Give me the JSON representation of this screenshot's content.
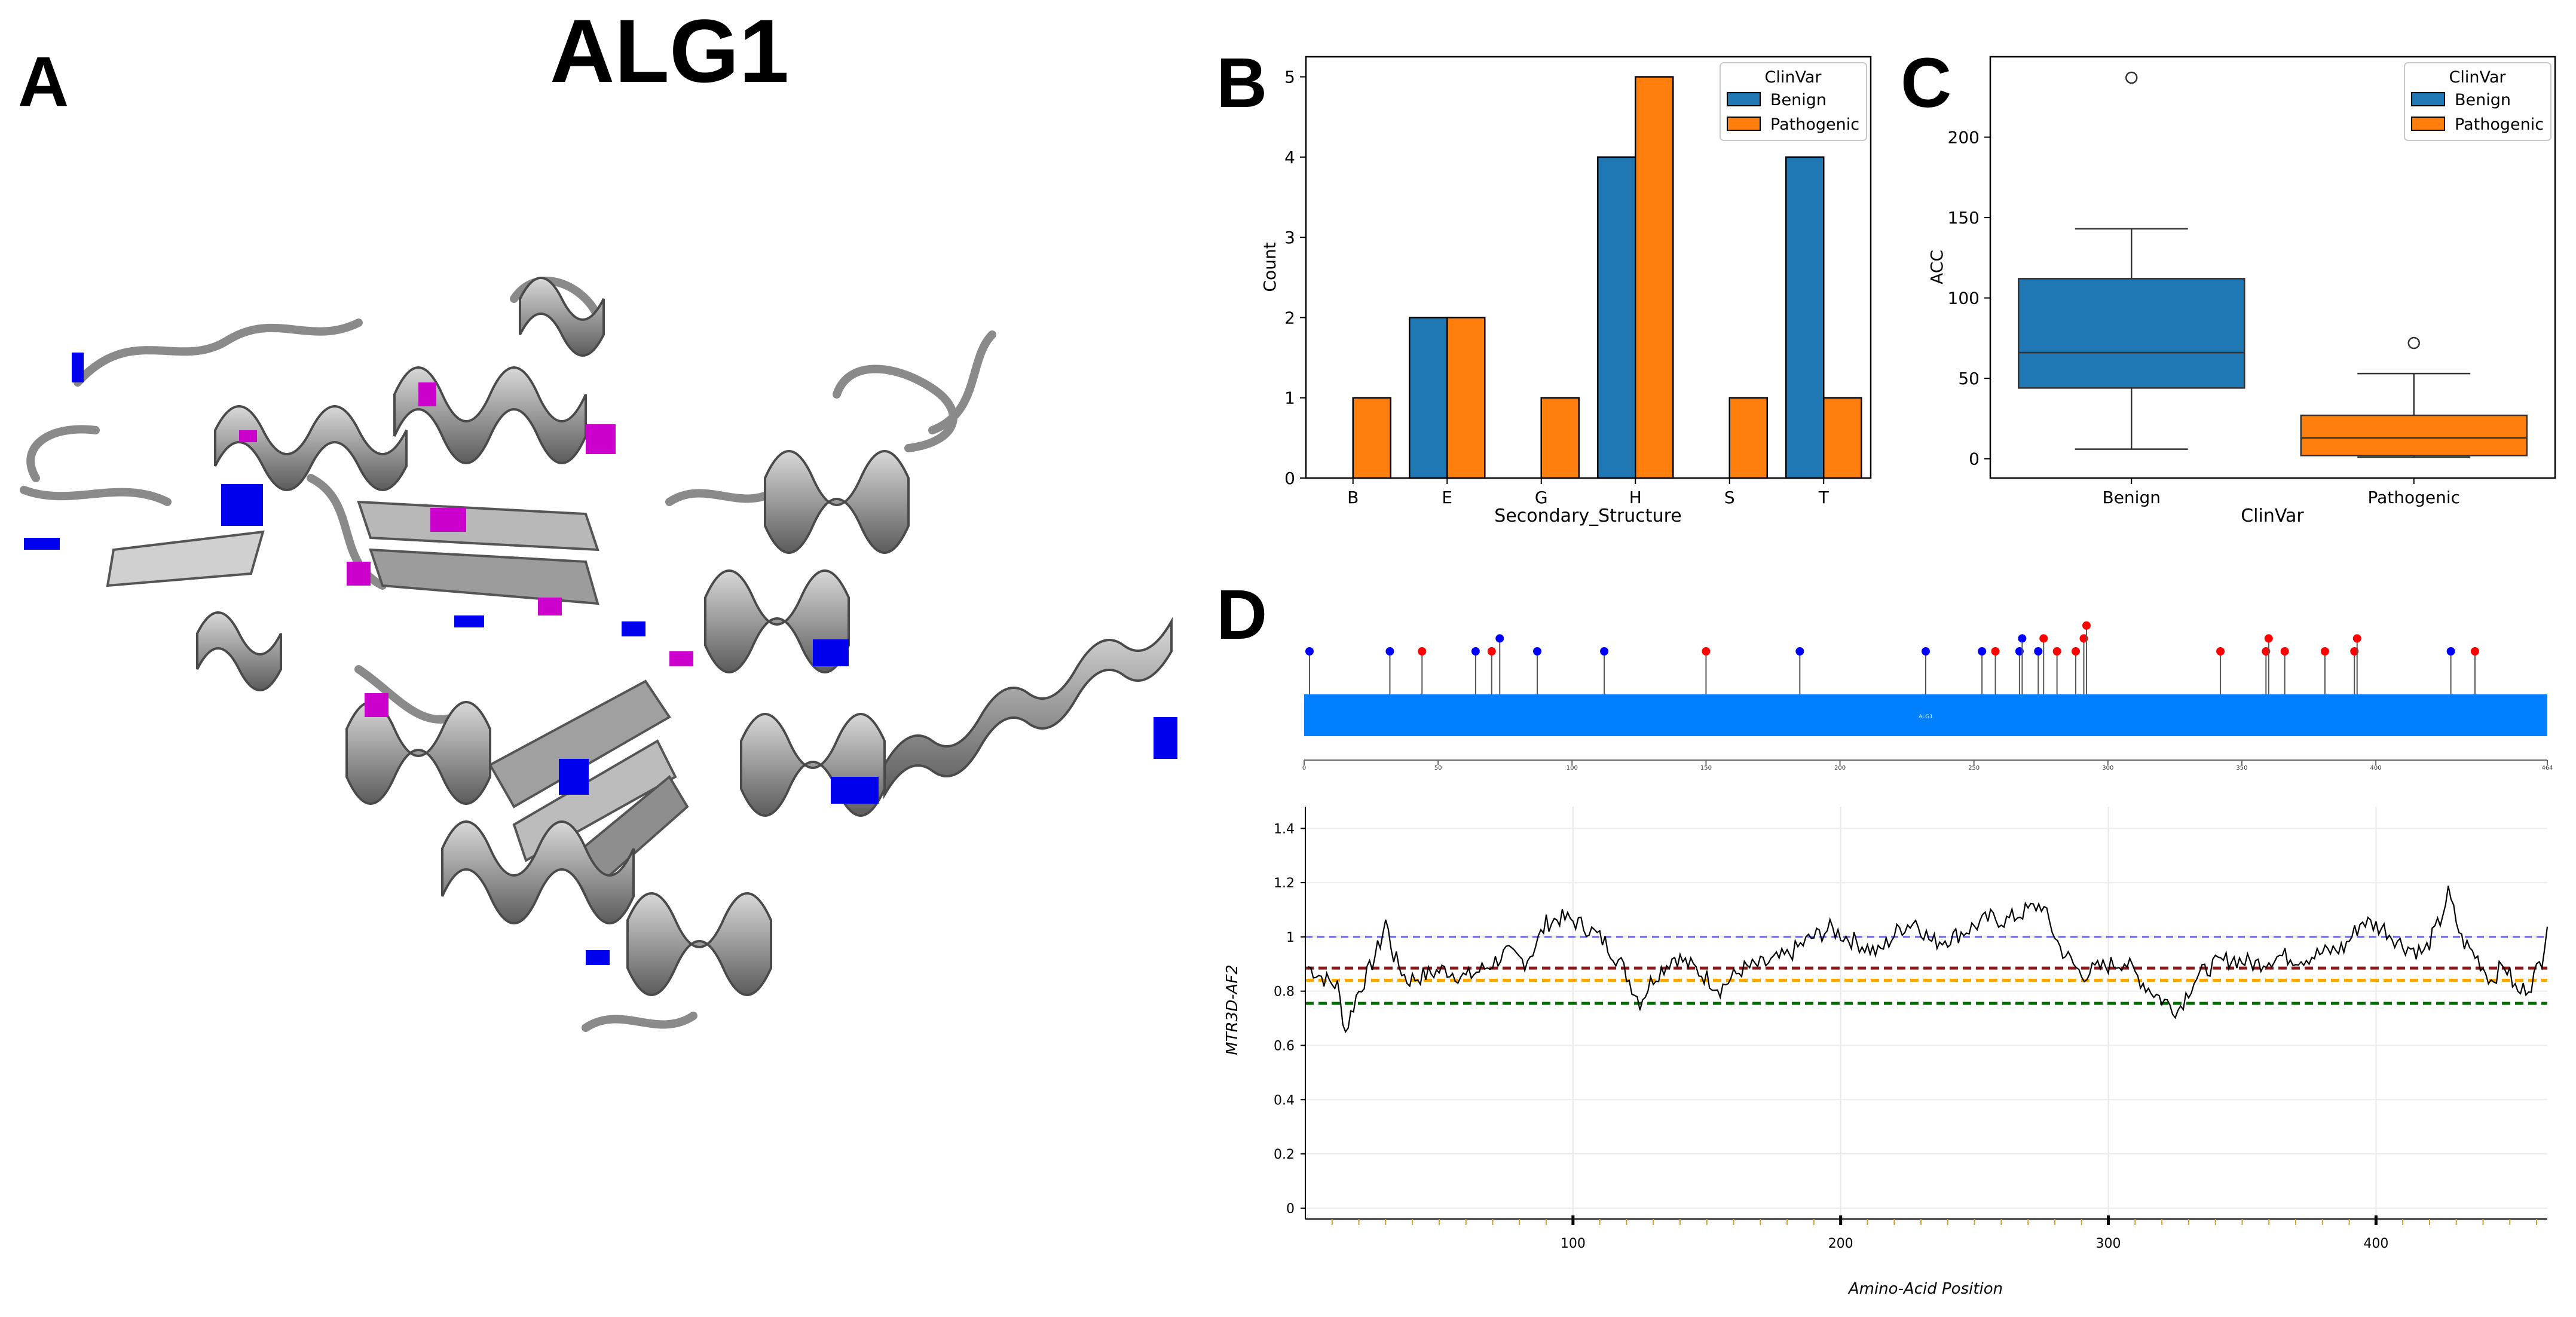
{
  "figure": {
    "title": "ALG1",
    "panel_labels": [
      "A",
      "B",
      "C",
      "D"
    ]
  },
  "colors": {
    "benign": "#1f77b4",
    "pathogenic": "#ff7f0e",
    "helix_gray": "#a9a9a9",
    "highlight_blue": "#0000ee",
    "highlight_magenta": "#cc00cc",
    "lollipop_blue": "#0000ff",
    "lollipop_red": "#ff0000",
    "protein_bar": "#0080ff",
    "line_purple": "#6666ee",
    "line_darkred": "#8b1a1a",
    "line_orange": "#ffa500",
    "line_green": "#007000"
  },
  "chart_data": [
    {
      "panel": "B",
      "type": "bar",
      "categories": [
        "B",
        "E",
        "G",
        "H",
        "S",
        "T"
      ],
      "series": [
        {
          "name": "Benign",
          "values": [
            0,
            2,
            0,
            4,
            0,
            4
          ]
        },
        {
          "name": "Pathogenic",
          "values": [
            1,
            2,
            1,
            5,
            1,
            1
          ]
        }
      ],
      "xlabel": "Secondary_Structure",
      "ylabel": "Count",
      "ylim": [
        0,
        5.25
      ],
      "yticks": [
        0,
        1,
        2,
        3,
        4,
        5
      ],
      "legend": {
        "title": "ClinVar",
        "position": "top-right",
        "entries": [
          "Benign",
          "Pathogenic"
        ]
      }
    },
    {
      "panel": "C",
      "type": "box",
      "categories": [
        "Benign",
        "Pathogenic"
      ],
      "boxes": [
        {
          "name": "Benign",
          "whisker_low": 6,
          "q1": 44,
          "median": 66,
          "q3": 112,
          "whisker_high": 143,
          "outliers": [
            237
          ]
        },
        {
          "name": "Pathogenic",
          "whisker_low": 1,
          "q1": 2,
          "median": 13,
          "q3": 27,
          "whisker_high": 53,
          "outliers": [
            72
          ]
        }
      ],
      "xlabel": "ClinVar",
      "ylabel": "ACC",
      "ylim": [
        -12,
        250
      ],
      "yticks": [
        0,
        50,
        100,
        150,
        200
      ],
      "legend": {
        "title": "ClinVar",
        "position": "top-right",
        "entries": [
          "Benign",
          "Pathogenic"
        ]
      }
    },
    {
      "panel": "D-top",
      "type": "lollipop",
      "protein_label": "ALG1",
      "xlim": [
        0,
        464
      ],
      "xticks": [
        0,
        50,
        100,
        150,
        200,
        250,
        300,
        350,
        400,
        464
      ],
      "variants": [
        {
          "pos": 2,
          "class": "benign",
          "h": 1
        },
        {
          "pos": 32,
          "class": "benign",
          "h": 1
        },
        {
          "pos": 44,
          "class": "pathogenic",
          "h": 1
        },
        {
          "pos": 64,
          "class": "benign",
          "h": 1
        },
        {
          "pos": 70,
          "class": "pathogenic",
          "h": 1
        },
        {
          "pos": 73,
          "class": "benign",
          "h": 1.3
        },
        {
          "pos": 87,
          "class": "benign",
          "h": 1
        },
        {
          "pos": 112,
          "class": "benign",
          "h": 1
        },
        {
          "pos": 150,
          "class": "pathogenic",
          "h": 1
        },
        {
          "pos": 185,
          "class": "benign",
          "h": 1
        },
        {
          "pos": 232,
          "class": "benign",
          "h": 1
        },
        {
          "pos": 253,
          "class": "benign",
          "h": 1
        },
        {
          "pos": 258,
          "class": "pathogenic",
          "h": 1
        },
        {
          "pos": 267,
          "class": "benign",
          "h": 1
        },
        {
          "pos": 268,
          "class": "benign",
          "h": 1.3
        },
        {
          "pos": 274,
          "class": "benign",
          "h": 1
        },
        {
          "pos": 276,
          "class": "pathogenic",
          "h": 1.3
        },
        {
          "pos": 281,
          "class": "pathogenic",
          "h": 1
        },
        {
          "pos": 288,
          "class": "pathogenic",
          "h": 1
        },
        {
          "pos": 291,
          "class": "pathogenic",
          "h": 1.3
        },
        {
          "pos": 292,
          "class": "pathogenic",
          "h": 1.6
        },
        {
          "pos": 342,
          "class": "pathogenic",
          "h": 1
        },
        {
          "pos": 359,
          "class": "pathogenic",
          "h": 1
        },
        {
          "pos": 360,
          "class": "pathogenic",
          "h": 1.3
        },
        {
          "pos": 366,
          "class": "pathogenic",
          "h": 1
        },
        {
          "pos": 381,
          "class": "pathogenic",
          "h": 1
        },
        {
          "pos": 392,
          "class": "pathogenic",
          "h": 1
        },
        {
          "pos": 393,
          "class": "pathogenic",
          "h": 1.3
        },
        {
          "pos": 428,
          "class": "benign",
          "h": 1
        },
        {
          "pos": 437,
          "class": "pathogenic",
          "h": 1
        }
      ]
    },
    {
      "panel": "D-bottom",
      "type": "line",
      "xlabel": "Amino-Acid Position",
      "ylabel": "MTR3D-AF2",
      "xlim": [
        0,
        464
      ],
      "ylim": [
        -0.04,
        1.48
      ],
      "xticks": [
        100,
        200,
        300,
        400
      ],
      "yticks": [
        0,
        0.2,
        0.4,
        0.6,
        0.8,
        1,
        1.2,
        1.4
      ],
      "ytick_labels": [
        "0",
        "0.2",
        "0.4",
        "0.6",
        "0.8",
        "1",
        "1.2",
        "1.4"
      ],
      "reference_lines": [
        {
          "y": 1.0,
          "color": "purple"
        },
        {
          "y": 0.885,
          "color": "darkred"
        },
        {
          "y": 0.84,
          "color": "orange"
        },
        {
          "y": 0.755,
          "color": "green"
        }
      ],
      "series_knots": [
        [
          1,
          0.89
        ],
        [
          8,
          0.84
        ],
        [
          12,
          0.82
        ],
        [
          15,
          0.65
        ],
        [
          19,
          0.78
        ],
        [
          24,
          0.88
        ],
        [
          28,
          0.98
        ],
        [
          30,
          1.06
        ],
        [
          33,
          0.93
        ],
        [
          38,
          0.84
        ],
        [
          45,
          0.86
        ],
        [
          52,
          0.88
        ],
        [
          60,
          0.85
        ],
        [
          68,
          0.89
        ],
        [
          75,
          0.94
        ],
        [
          82,
          0.91
        ],
        [
          85,
          0.95
        ],
        [
          90,
          1.05
        ],
        [
          95,
          1.07
        ],
        [
          100,
          1.06
        ],
        [
          106,
          1.03
        ],
        [
          112,
          0.98
        ],
        [
          118,
          0.9
        ],
        [
          125,
          0.76
        ],
        [
          130,
          0.85
        ],
        [
          138,
          0.93
        ],
        [
          146,
          0.88
        ],
        [
          155,
          0.81
        ],
        [
          163,
          0.88
        ],
        [
          172,
          0.9
        ],
        [
          180,
          0.93
        ],
        [
          188,
          0.99
        ],
        [
          196,
          1.03
        ],
        [
          206,
          0.98
        ],
        [
          214,
          0.94
        ],
        [
          222,
          1.03
        ],
        [
          228,
          1.06
        ],
        [
          234,
          0.98
        ],
        [
          242,
          1.0
        ],
        [
          250,
          1.04
        ],
        [
          256,
          1.07
        ],
        [
          262,
          1.06
        ],
        [
          268,
          1.09
        ],
        [
          275,
          1.12
        ],
        [
          282,
          0.96
        ],
        [
          290,
          0.86
        ],
        [
          298,
          0.89
        ],
        [
          306,
          0.91
        ],
        [
          314,
          0.82
        ],
        [
          320,
          0.77
        ],
        [
          326,
          0.73
        ],
        [
          332,
          0.84
        ],
        [
          338,
          0.89
        ],
        [
          346,
          0.92
        ],
        [
          355,
          0.9
        ],
        [
          364,
          0.93
        ],
        [
          372,
          0.92
        ],
        [
          380,
          0.94
        ],
        [
          388,
          0.96
        ],
        [
          395,
          1.06
        ],
        [
          403,
          1.03
        ],
        [
          410,
          0.97
        ],
        [
          418,
          0.94
        ],
        [
          424,
          1.06
        ],
        [
          427,
          1.16
        ],
        [
          432,
          0.99
        ],
        [
          438,
          0.92
        ],
        [
          443,
          0.84
        ],
        [
          448,
          0.9
        ],
        [
          453,
          0.79
        ],
        [
          458,
          0.83
        ],
        [
          462,
          0.92
        ],
        [
          464,
          1.06
        ]
      ]
    }
  ]
}
